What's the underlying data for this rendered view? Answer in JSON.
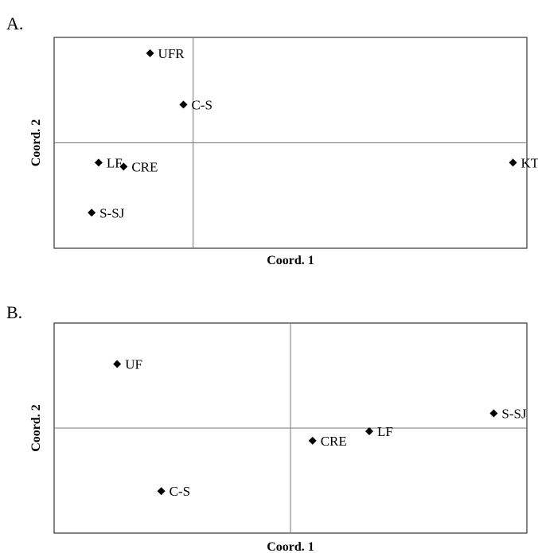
{
  "chart_data": [
    {
      "type": "scatter",
      "panel": "A.",
      "xlabel": "Coord. 1",
      "ylabel": "Coord. 2",
      "axes_cross": [
        0,
        0
      ],
      "grid": false,
      "xlim": [
        -1.0,
        2.4
      ],
      "ylim": [
        -0.8,
        0.8
      ],
      "points": [
        {
          "label": "UFR",
          "x": -0.31,
          "y": 0.68
        },
        {
          "label": "C-S",
          "x": -0.07,
          "y": 0.29
        },
        {
          "label": "LF",
          "x": -0.68,
          "y": -0.15
        },
        {
          "label": "CRE",
          "x": -0.5,
          "y": -0.18
        },
        {
          "label": "S-SJ",
          "x": -0.73,
          "y": -0.53
        },
        {
          "label": "KT",
          "x": 2.3,
          "y": -0.15
        }
      ]
    },
    {
      "type": "scatter",
      "panel": "B.",
      "xlabel": "Coord. 1",
      "ylabel": "Coord. 2",
      "axes_cross": [
        0,
        0
      ],
      "grid": false,
      "xlim": [
        -1.5,
        1.5
      ],
      "ylim": [
        -1.0,
        1.0
      ],
      "points": [
        {
          "label": "UF",
          "x": -1.1,
          "y": 0.61
        },
        {
          "label": "S-SJ",
          "x": 1.29,
          "y": 0.14
        },
        {
          "label": "LF",
          "x": 0.5,
          "y": -0.03
        },
        {
          "label": "CRE",
          "x": 0.14,
          "y": -0.12
        },
        {
          "label": "C-S",
          "x": -0.82,
          "y": -0.6
        }
      ]
    }
  ]
}
